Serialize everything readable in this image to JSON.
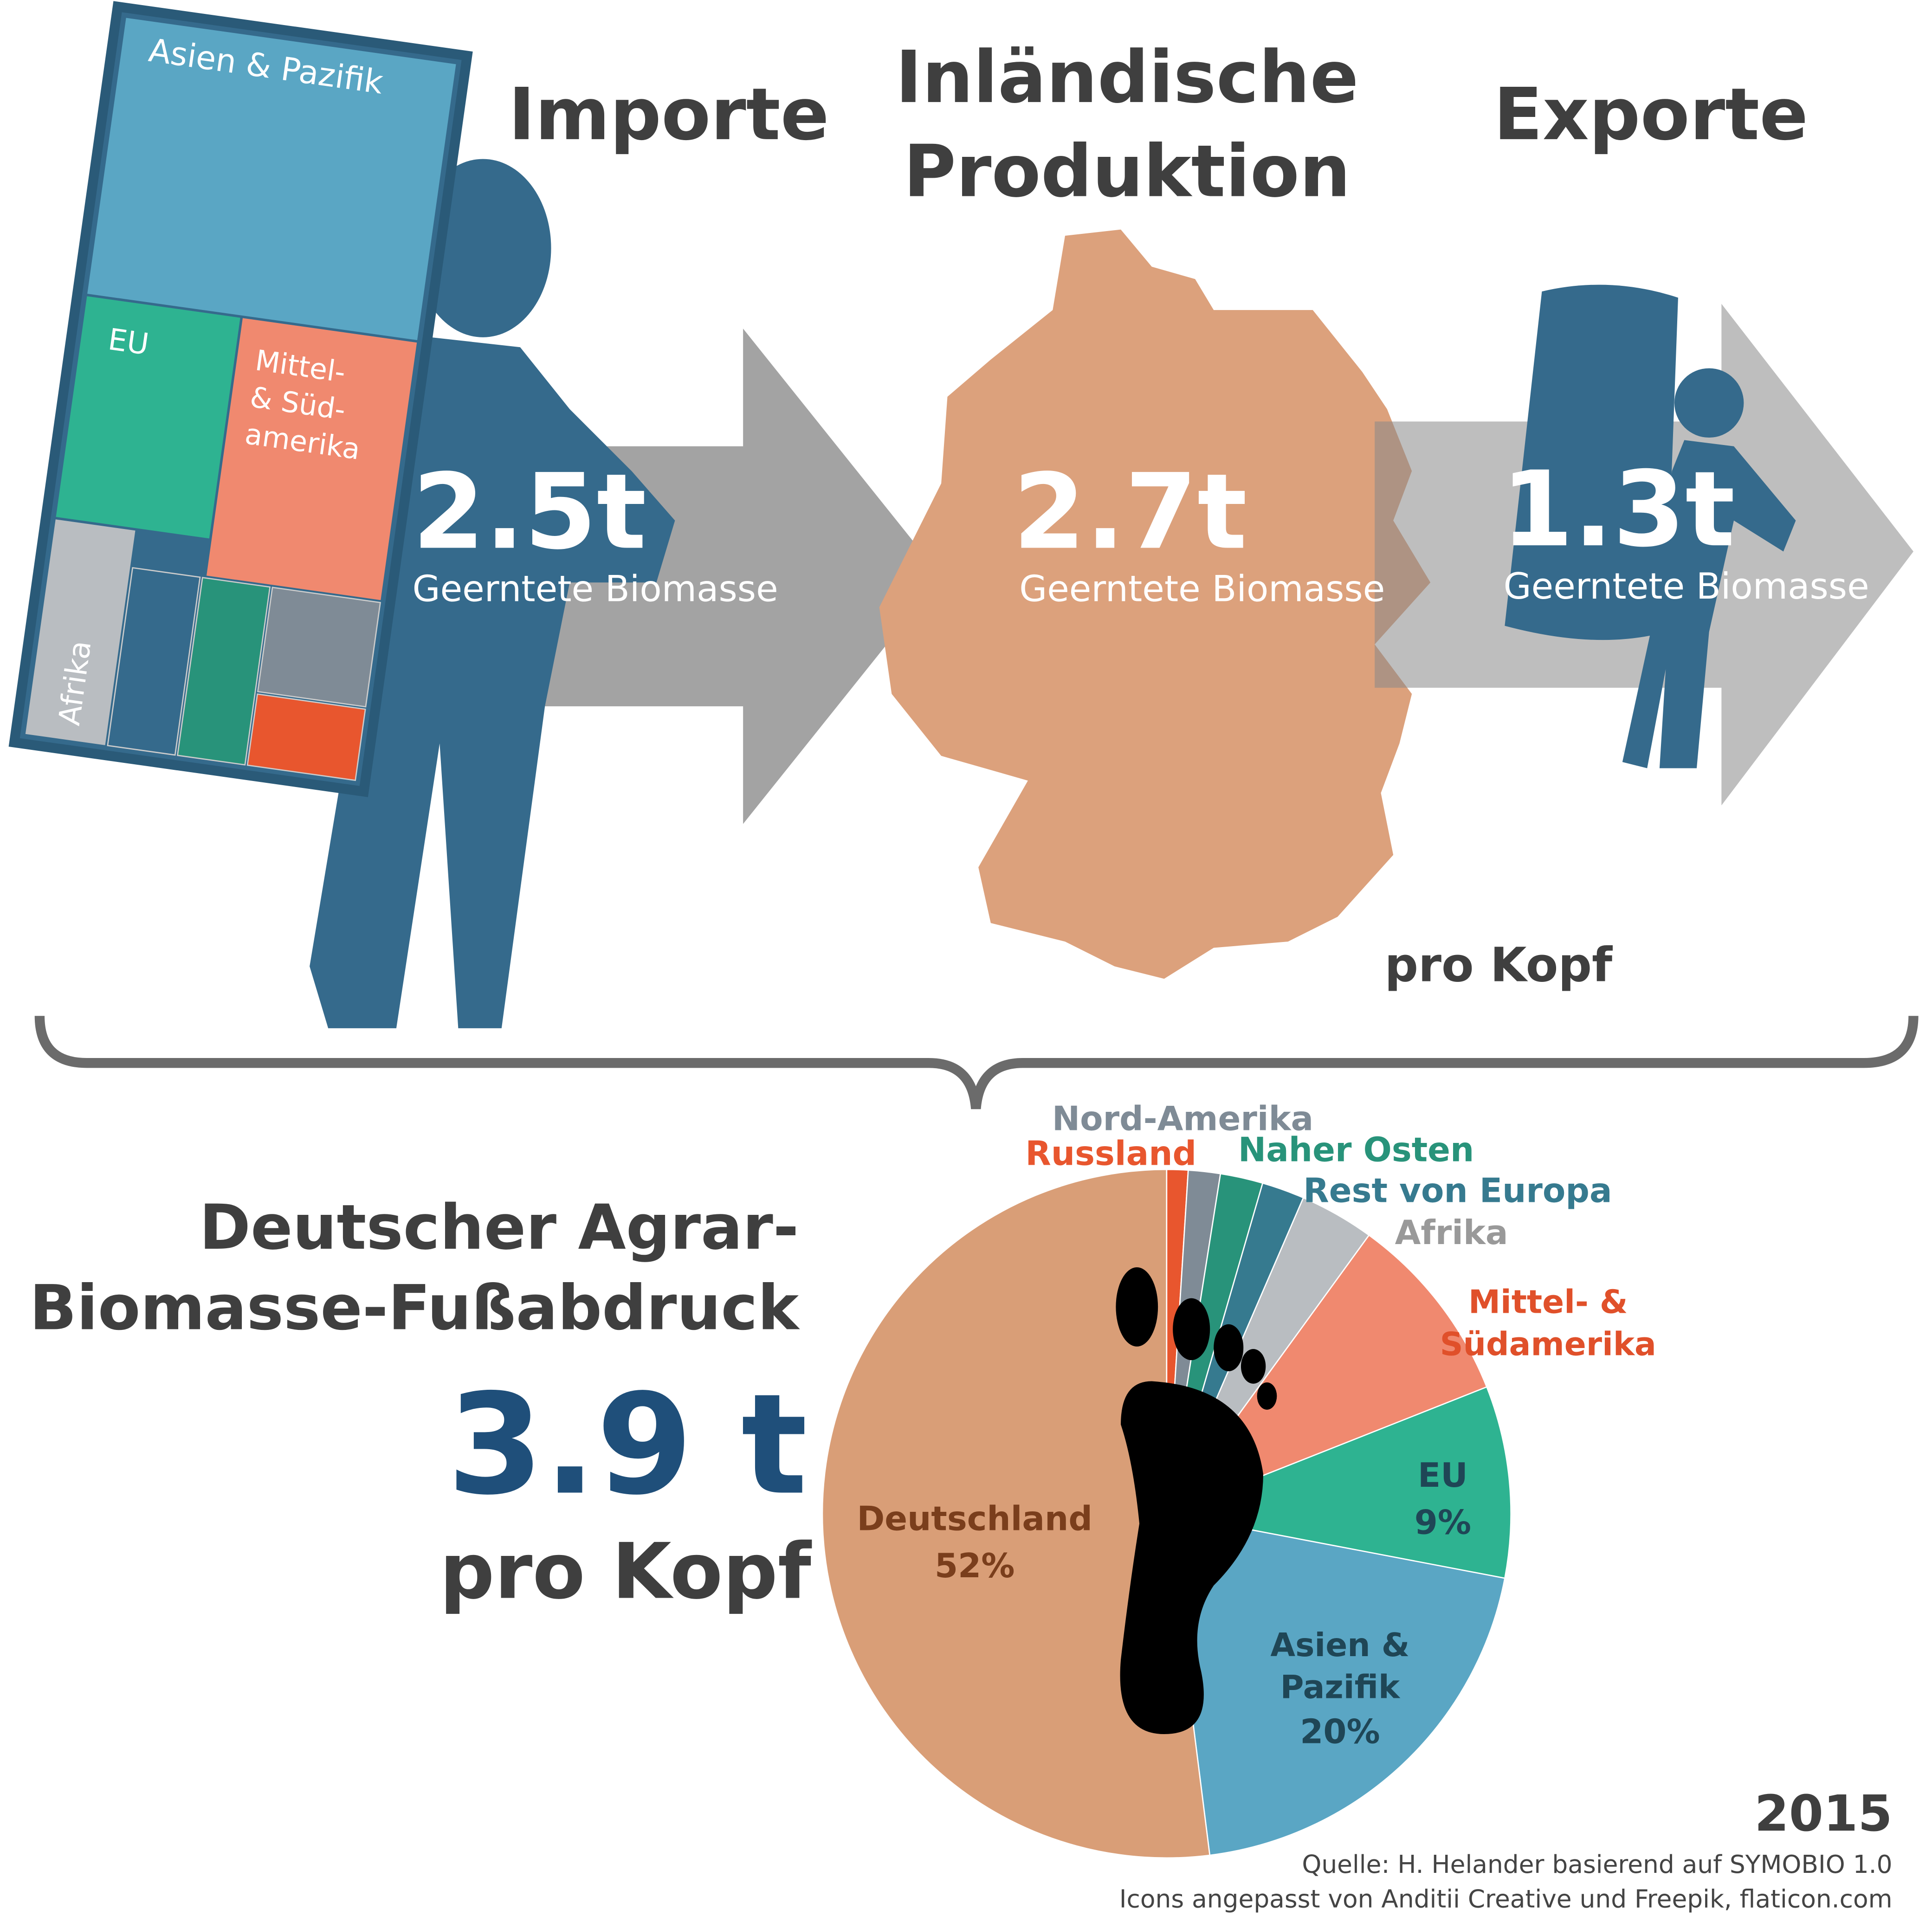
{
  "header": {
    "imports": {
      "title": "Importe",
      "amount": "2.5t",
      "unit": "Geerntete Biomasse"
    },
    "production": {
      "title_lines": [
        "Inländische",
        "Produktion"
      ],
      "amount": "2.7t",
      "unit": "Geerntete Biomasse"
    },
    "exports": {
      "title": "Exporte",
      "amount": "1.3t",
      "unit": "Geerntete Biomasse"
    },
    "per_capita": "pro Kopf",
    "treemap": {
      "asia": "Asien & Pazifik",
      "eu": "EU",
      "latam_lines": [
        "Mittel-",
        "& Süd-",
        "amerika"
      ],
      "africa": "Afrika"
    }
  },
  "footprint": {
    "title_lines": [
      "Deutscher Agrar-",
      "Biomasse-Fußabdruck"
    ],
    "total": "3.9 t",
    "per_capita": "pro Kopf"
  },
  "chart_data": {
    "type": "pie",
    "categories": [
      "Russland",
      "Nord-Amerika",
      "Naher Osten",
      "Rest von Europa",
      "Afrika",
      "Mittel- & Südamerika",
      "EU",
      "Asien & Pazifik",
      "Deutschland"
    ],
    "values": [
      1,
      1.5,
      2,
      2,
      3.5,
      9,
      9,
      20,
      52
    ],
    "value_labels": [
      null,
      null,
      null,
      null,
      null,
      null,
      "9%",
      "20%",
      "52%"
    ],
    "colors": [
      "#e8562e",
      "#7f8b96",
      "#28937a",
      "#367a8f",
      "#b9bdc1",
      "#f0896f",
      "#2eb391",
      "#5aa6c4",
      "#d99e77"
    ]
  },
  "footer": {
    "year": "2015",
    "source": "Quelle: H. Helander basierend auf SYMOBIO 1.0",
    "credits": "Icons angepasst von Anditii Creative und Freepik, flaticon.com"
  }
}
